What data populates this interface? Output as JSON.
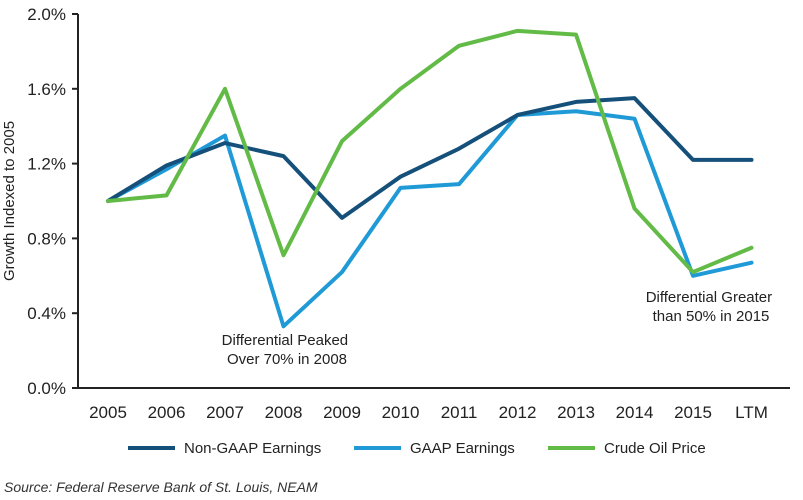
{
  "chart_data": {
    "type": "line",
    "title": "",
    "xlabel": "",
    "ylabel": "Growth Indexed to 2005",
    "categories": [
      "2005",
      "2006",
      "2007",
      "2008",
      "2009",
      "2010",
      "2011",
      "2012",
      "2013",
      "2014",
      "2015",
      "LTM"
    ],
    "ylim": [
      0.0,
      2.0
    ],
    "yticks": [
      0.0,
      0.4,
      0.8,
      1.2,
      1.6,
      2.0
    ],
    "ytick_labels": [
      "0.0%",
      "0.4%",
      "0.8%",
      "1.2%",
      "1.6%",
      "2.0%"
    ],
    "grid": false,
    "legend_position": "bottom",
    "series": [
      {
        "name": "Non-GAAP Earnings",
        "color": "#15507a",
        "x": [
          0,
          1,
          2,
          3,
          4,
          5,
          6,
          7,
          8,
          9,
          10,
          11
        ],
        "values": [
          1.0,
          1.19,
          1.31,
          1.24,
          0.91,
          1.13,
          1.28,
          1.46,
          1.53,
          1.55,
          1.22,
          1.22
        ]
      },
      {
        "name": "GAAP Earnings",
        "color": "#1f9ad6",
        "x": [
          0,
          1,
          2,
          3,
          4,
          5,
          6,
          7,
          8,
          9,
          10,
          11
        ],
        "values": [
          1.0,
          1.17,
          1.35,
          0.33,
          0.62,
          1.07,
          1.09,
          1.46,
          1.48,
          1.44,
          0.6,
          0.67
        ]
      },
      {
        "name": "Crude Oil Price",
        "color": "#62bb46",
        "x": [
          0,
          1,
          2,
          3,
          4,
          5,
          6,
          7,
          8,
          9,
          10,
          11
        ],
        "values": [
          1.0,
          1.03,
          1.6,
          0.71,
          1.32,
          1.6,
          1.83,
          1.91,
          1.89,
          0.96,
          0.62,
          0.75
        ]
      }
    ],
    "annotations": [
      {
        "id": "a2008",
        "lines": [
          "Differential Peaked",
          "Over 70% in 2008"
        ]
      },
      {
        "id": "a2015",
        "lines": [
          "Differential Greater",
          "than 50% in 2015"
        ]
      }
    ],
    "source": "Source: Federal Reserve Bank of St. Louis, NEAM"
  }
}
